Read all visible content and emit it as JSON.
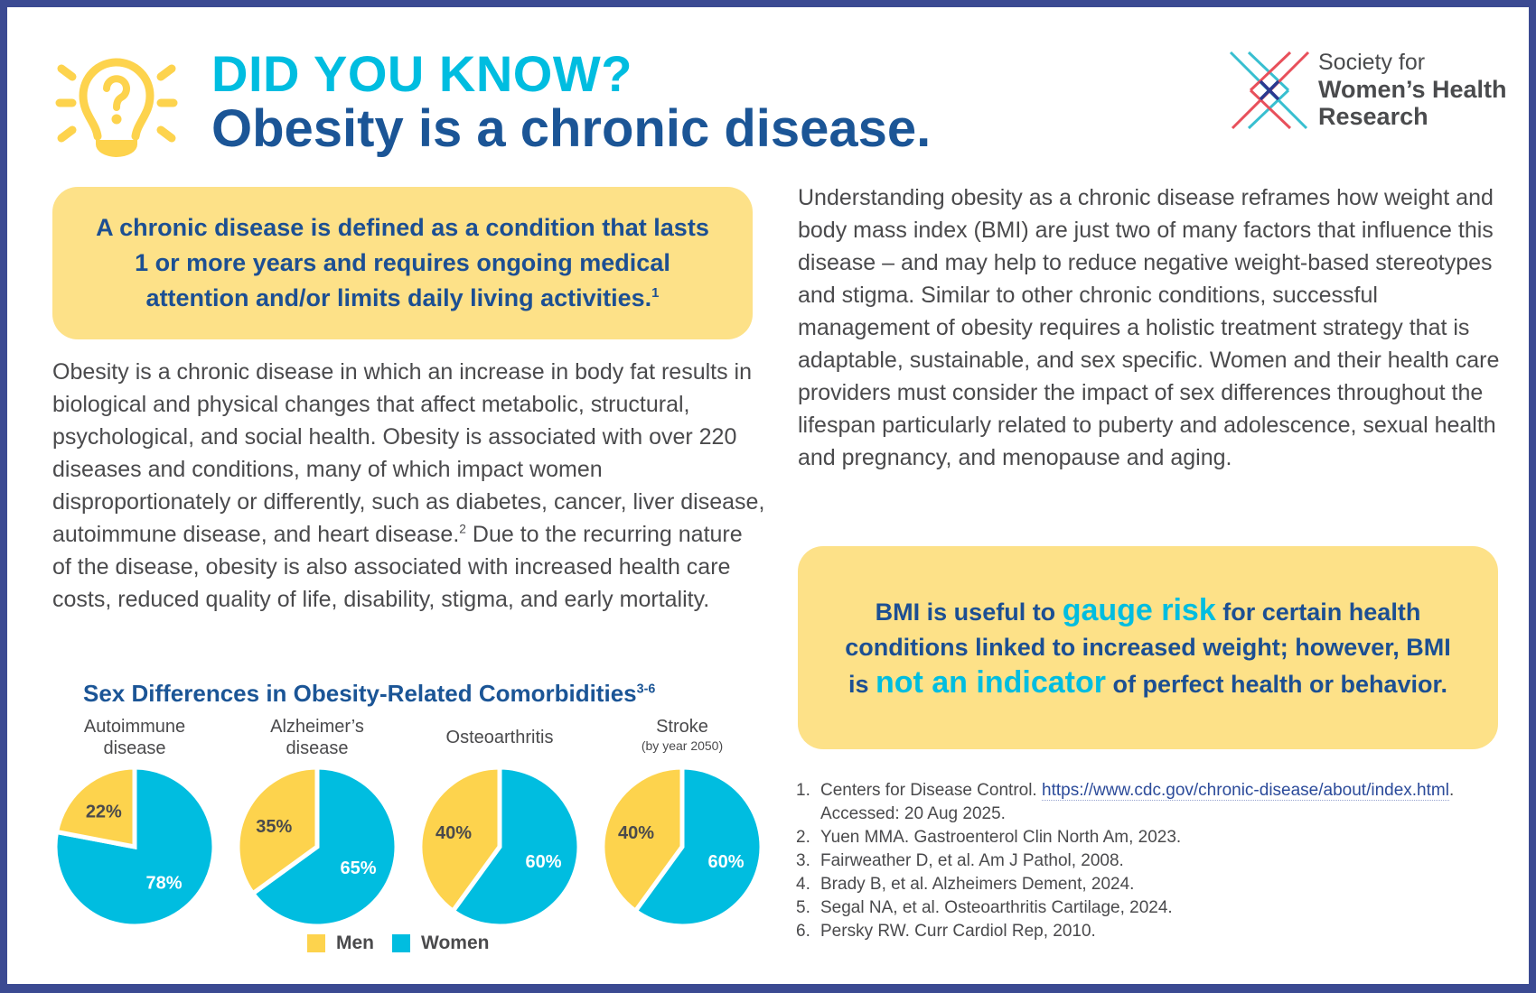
{
  "header": {
    "kicker": "DID YOU KNOW?",
    "title": "Obesity is a chronic disease.",
    "icon": "lightbulb-question-icon"
  },
  "logo": {
    "line1": "Society for",
    "line2": "Women’s Health",
    "line3": "Research",
    "colors": {
      "red": "#e8505b",
      "cyan": "#38bfd0",
      "navy": "#2b3990"
    }
  },
  "definition_box": {
    "text": "A chronic disease is defined as a condition that lasts 1 or more years and requires ongoing medical attention and/or limits daily living activities.",
    "ref": "1"
  },
  "left_paragraph": {
    "part1": "Obesity is a chronic disease in which an increase in body fat results in biological and physical changes that affect metabolic, structural, psychological, and social health. Obesity is associated with over 220 diseases and conditions, many of which impact women disproportionately or differently, such as diabetes, cancer, liver disease, autoimmune disease, and heart disease.",
    "ref": "2",
    "part2": " Due to the recurring nature of the disease, obesity is also associated with increased health care costs, reduced quality of life, disability, stigma, and early mortality."
  },
  "right_paragraph": "Understanding obesity as a chronic disease reframes how weight and body mass index (BMI) are just two of many factors that influence this disease – and may help to reduce negative weight-based stereotypes and stigma. Similar to other chronic conditions, successful management of obesity requires a holistic treatment strategy that is adaptable, sustainable, and sex specific. Women and their health care providers must consider the impact of sex differences throughout the lifespan particularly related to puberty and adolescence, sexual health and pregnancy, and menopause and aging.",
  "bmi_box": {
    "pre1": "BMI is useful to ",
    "highlight1": "gauge risk",
    "mid": " for certain health conditions linked to increased weight; however, BMI is ",
    "highlight2": "not an indicator",
    "post": " of perfect health or behavior."
  },
  "chart_data": {
    "type": "pie",
    "title": "Sex Differences in Obesity-Related Comorbidities",
    "title_ref": "3-6",
    "legend": [
      {
        "name": "Men",
        "color": "#fdd34d"
      },
      {
        "name": "Women",
        "color": "#00bde0"
      }
    ],
    "legend_position": "bottom",
    "pies": [
      {
        "label": "Autoimmune disease",
        "label_lines": [
          "Autoimmune",
          "disease"
        ],
        "sublabel": "",
        "men": 22,
        "women": 78,
        "men_label": "22%",
        "women_label": "78%"
      },
      {
        "label": "Alzheimer’s disease",
        "label_lines": [
          "Alzheimer’s",
          "disease"
        ],
        "sublabel": "",
        "men": 35,
        "women": 65,
        "men_label": "35%",
        "women_label": "65%"
      },
      {
        "label": "Osteoarthritis",
        "label_lines": [
          "Osteoarthritis"
        ],
        "sublabel": "",
        "men": 40,
        "women": 60,
        "men_label": "40%",
        "women_label": "60%"
      },
      {
        "label": "Stroke",
        "label_lines": [
          "Stroke"
        ],
        "sublabel": "(by year 2050)",
        "men": 40,
        "women": 60,
        "men_label": "40%",
        "women_label": "60%"
      }
    ]
  },
  "references": [
    {
      "num": "1.",
      "text": "Centers for Disease Control. ",
      "link": "https://www.cdc.gov/chronic-disease/about/index.html",
      "after": ". Accessed: 20 Aug 2025."
    },
    {
      "num": "2.",
      "text": "Yuen MMA. Gastroenterol Clin North Am, 2023."
    },
    {
      "num": "3.",
      "text": "Fairweather D, et al. Am J Pathol, 2008."
    },
    {
      "num": "4.",
      "text": "Brady B, et al. Alzheimers Dement, 2024."
    },
    {
      "num": "5.",
      "text": "Segal NA, et al. Osteoarthritis Cartilage, 2024."
    },
    {
      "num": "6.",
      "text": "Persky RW. Curr Cardiol Rep, 2010."
    }
  ]
}
